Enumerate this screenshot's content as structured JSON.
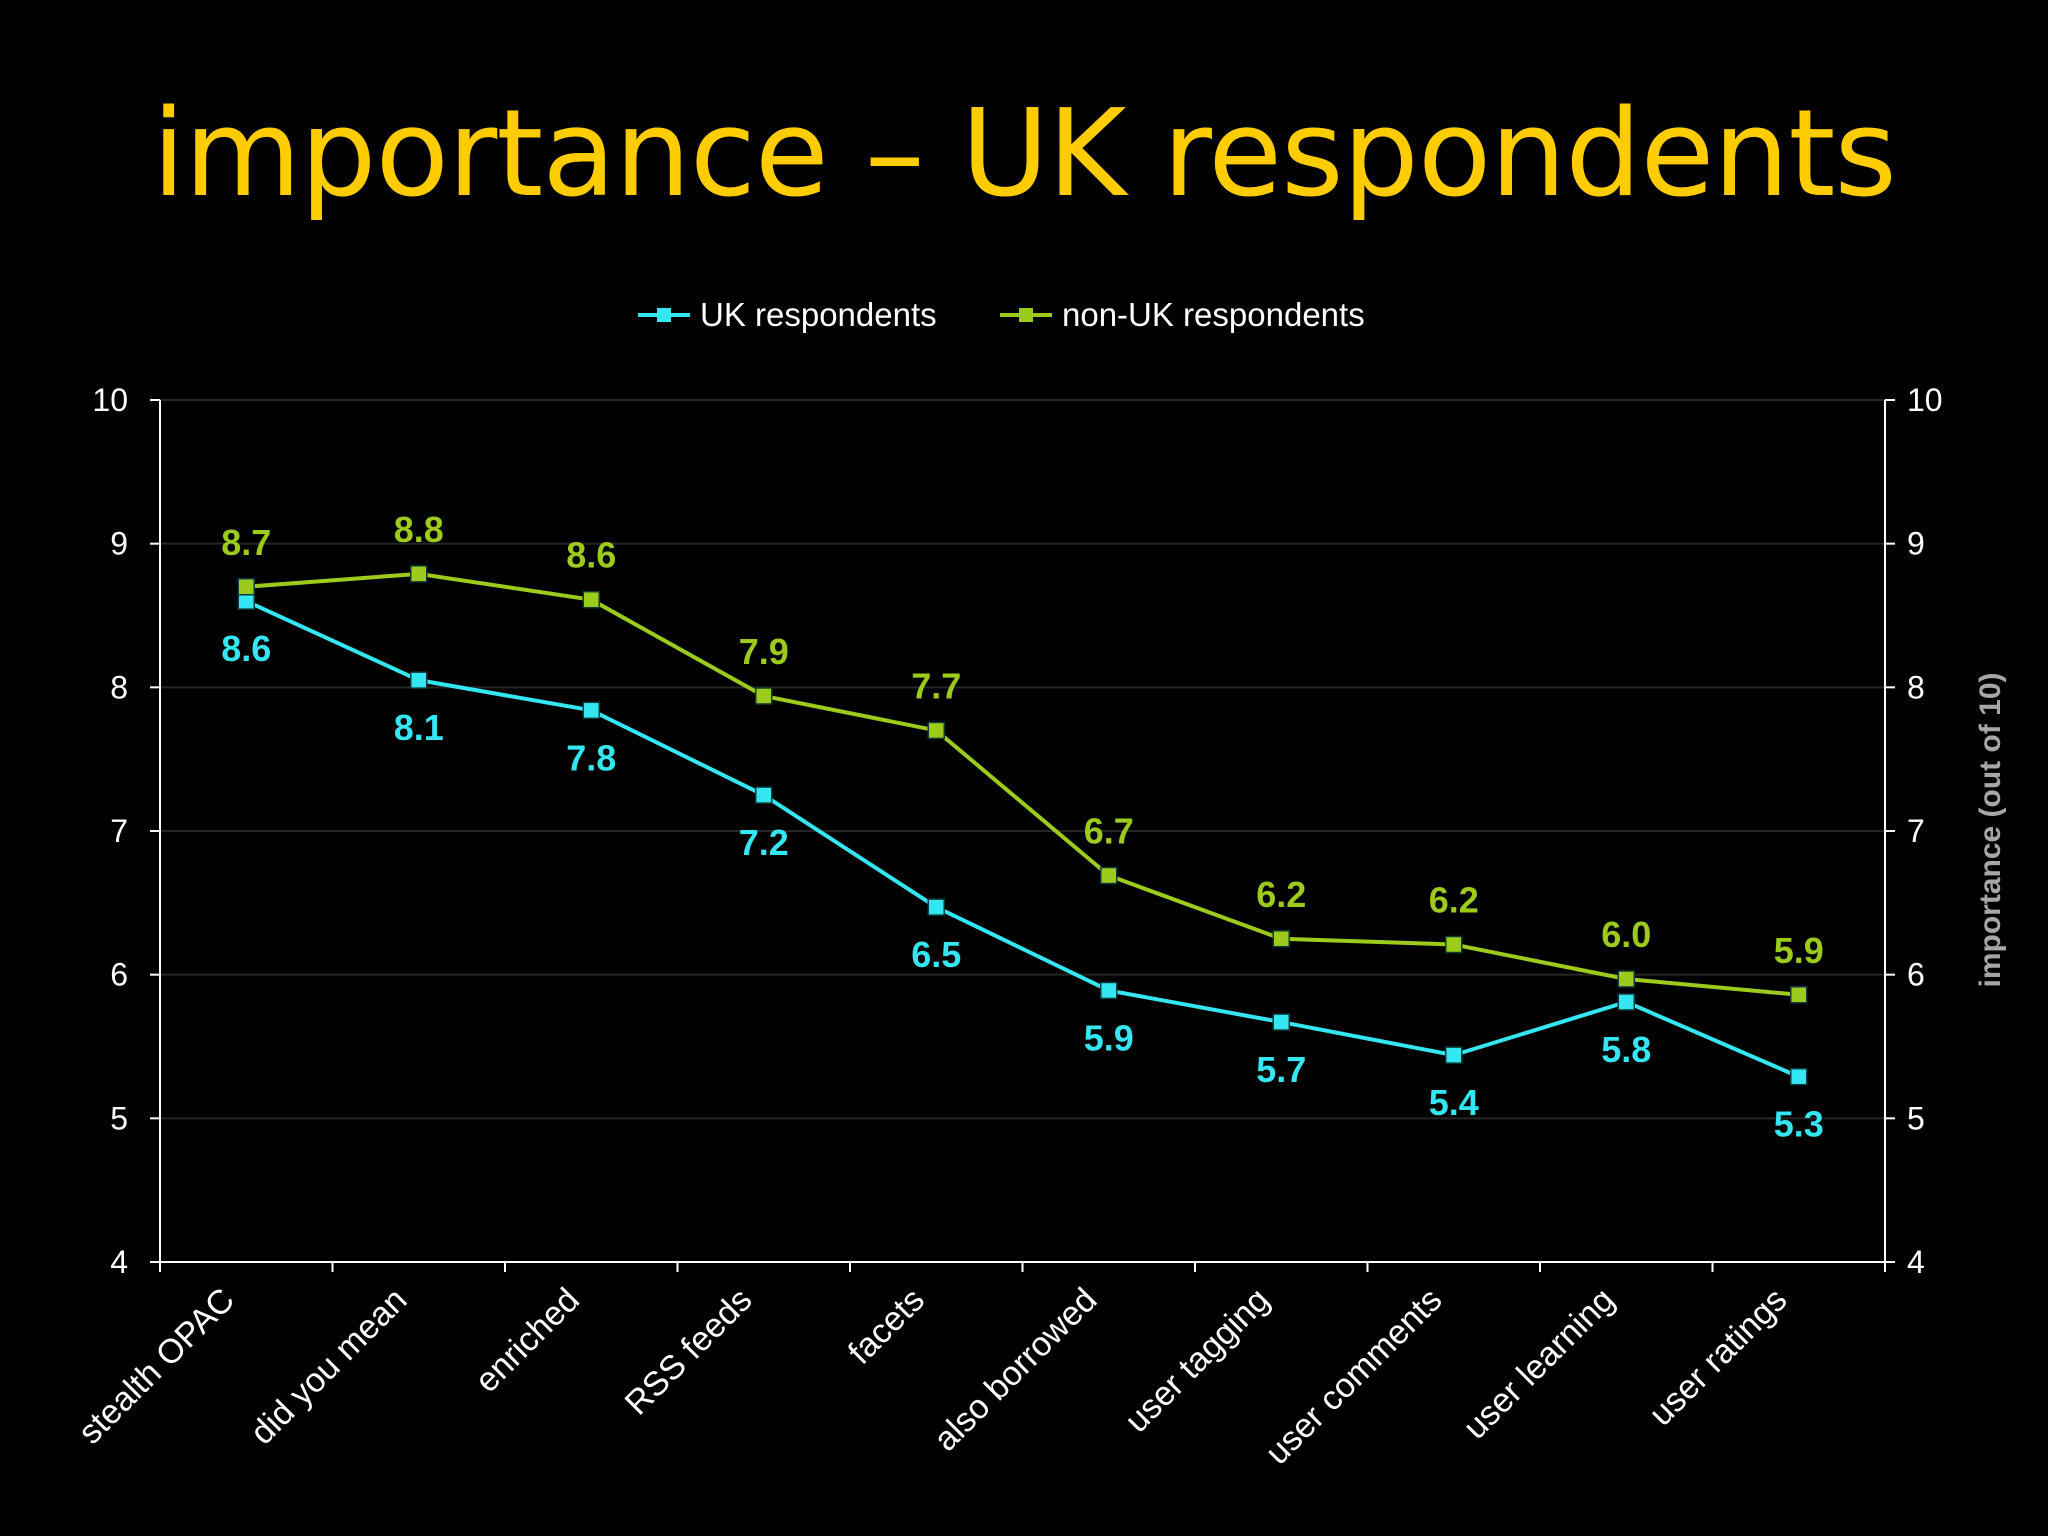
{
  "slide": {
    "title": "importance – UK respondents",
    "background": "#000000",
    "title_color": "#ffcc00"
  },
  "chart_data": {
    "type": "line",
    "categories": [
      "stealth OPAC",
      "did you mean",
      "enriched",
      "RSS feeds",
      "facets",
      "also borrowed",
      "user tagging",
      "user comments",
      "user learning",
      "user ratings"
    ],
    "series": [
      {
        "name": "UK respondents",
        "color": "#33e6f2",
        "values": [
          8.6,
          8.05,
          7.84,
          7.25,
          6.47,
          5.89,
          5.67,
          5.44,
          5.81,
          5.29
        ],
        "labels": [
          "8.6",
          "8.1",
          "7.8",
          "7.2",
          "6.5",
          "5.9",
          "5.7",
          "5.4",
          "5.8",
          "5.3"
        ]
      },
      {
        "name": "non-UK respondents",
        "color": "#9ccb1c",
        "values": [
          8.7,
          8.79,
          8.61,
          7.94,
          7.7,
          6.69,
          6.25,
          6.21,
          5.97,
          5.86
        ],
        "labels": [
          "8.7",
          "8.8",
          "8.6",
          "7.9",
          "7.7",
          "6.7",
          "6.2",
          "6.2",
          "6.0",
          "5.9"
        ]
      }
    ],
    "ylim": [
      4,
      10
    ],
    "yticks": [
      "4",
      "5",
      "6",
      "7",
      "8",
      "9",
      "10"
    ],
    "ylabel_right": "importance (out of 10)",
    "legend_position": "top-center",
    "grid": true
  }
}
